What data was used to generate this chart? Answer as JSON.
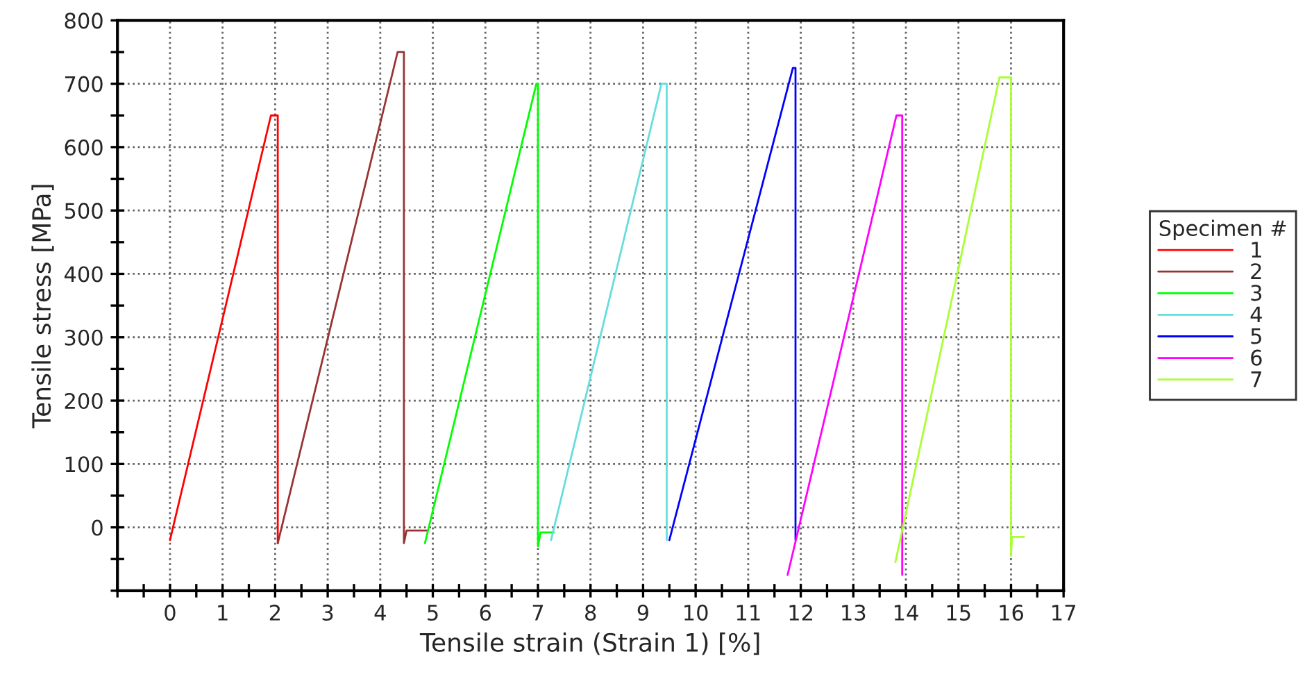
{
  "chart_data": {
    "type": "line",
    "xlabel": "Tensile strain (Strain 1) [%]",
    "ylabel": "Tensile stress [MPa]",
    "legend_title": "Specimen #",
    "legend": "right",
    "grid": true,
    "xlim": [
      -1,
      17
    ],
    "ylim": [
      -100,
      800
    ],
    "xticks": [
      {
        "value": -1,
        "label": null
      },
      {
        "value": -0.5,
        "label": null
      },
      0,
      {
        "value": 0.5,
        "label": null
      },
      1,
      {
        "value": 1.5,
        "label": null
      },
      2,
      {
        "value": 2.5,
        "label": null
      },
      3,
      {
        "value": 3.5,
        "label": null
      },
      4,
      {
        "value": 4.5,
        "label": null
      },
      5,
      {
        "value": 5.5,
        "label": null
      },
      6,
      {
        "value": 6.5,
        "label": null
      },
      7,
      {
        "value": 7.5,
        "label": null
      },
      8,
      {
        "value": 8.5,
        "label": null
      },
      9,
      {
        "value": 9.5,
        "label": null
      },
      10,
      {
        "value": 10.5,
        "label": null
      },
      11,
      {
        "value": 11.5,
        "label": null
      },
      12,
      {
        "value": 12.5,
        "label": null
      },
      13,
      {
        "value": 13.5,
        "label": null
      },
      14,
      {
        "value": 14.5,
        "label": null
      },
      15,
      {
        "value": 15.5,
        "label": null
      },
      16,
      {
        "value": 16.5,
        "label": null
      },
      17
    ],
    "yticks": [
      {
        "value": -100,
        "label": null
      },
      {
        "value": -50,
        "label": null
      },
      0,
      {
        "value": 50,
        "label": null
      },
      100,
      {
        "value": 150,
        "label": null
      },
      200,
      {
        "value": 250,
        "label": null
      },
      300,
      {
        "value": 350,
        "label": null
      },
      400,
      {
        "value": 450,
        "label": null
      },
      500,
      {
        "value": 550,
        "label": null
      },
      600,
      {
        "value": 650,
        "label": null
      },
      700,
      {
        "value": 750,
        "label": null
      },
      800
    ],
    "series": [
      {
        "name": "1",
        "color": "#ff0000",
        "x": [
          0,
          1.92,
          1.95,
          2.05,
          2.05
        ],
        "values": [
          -20,
          650,
          650,
          650,
          -25
        ]
      },
      {
        "name": "2",
        "color": "#993333",
        "x": [
          2.05,
          4.33,
          4.38,
          4.45,
          4.45,
          4.5,
          4.9
        ],
        "values": [
          -25,
          750,
          750,
          750,
          -25,
          -5,
          -5
        ]
      },
      {
        "name": "3",
        "color": "#00ff00",
        "x": [
          4.85,
          6.97,
          7.0,
          7.0,
          7.05,
          7.3
        ],
        "values": [
          -25,
          700,
          700,
          -30,
          -8,
          -8
        ]
      },
      {
        "name": "4",
        "color": "#66dddd",
        "x": [
          7.25,
          9.35,
          9.4,
          9.45,
          9.45
        ],
        "values": [
          -20,
          700,
          700,
          700,
          -20
        ]
      },
      {
        "name": "5",
        "color": "#0000ff",
        "x": [
          9.5,
          11.85,
          11.9,
          11.9
        ],
        "values": [
          -20,
          725,
          725,
          -20
        ]
      },
      {
        "name": "6",
        "color": "#ff00ff",
        "x": [
          11.75,
          13.82,
          13.86,
          13.93,
          13.93
        ],
        "values": [
          -75,
          650,
          650,
          650,
          -75
        ]
      },
      {
        "name": "7",
        "color": "#aaff33",
        "x": [
          13.8,
          15.78,
          15.82,
          16.0,
          16.0,
          16.02,
          16.25
        ],
        "values": [
          -55,
          710,
          710,
          710,
          -45,
          -15,
          -15
        ]
      }
    ]
  }
}
